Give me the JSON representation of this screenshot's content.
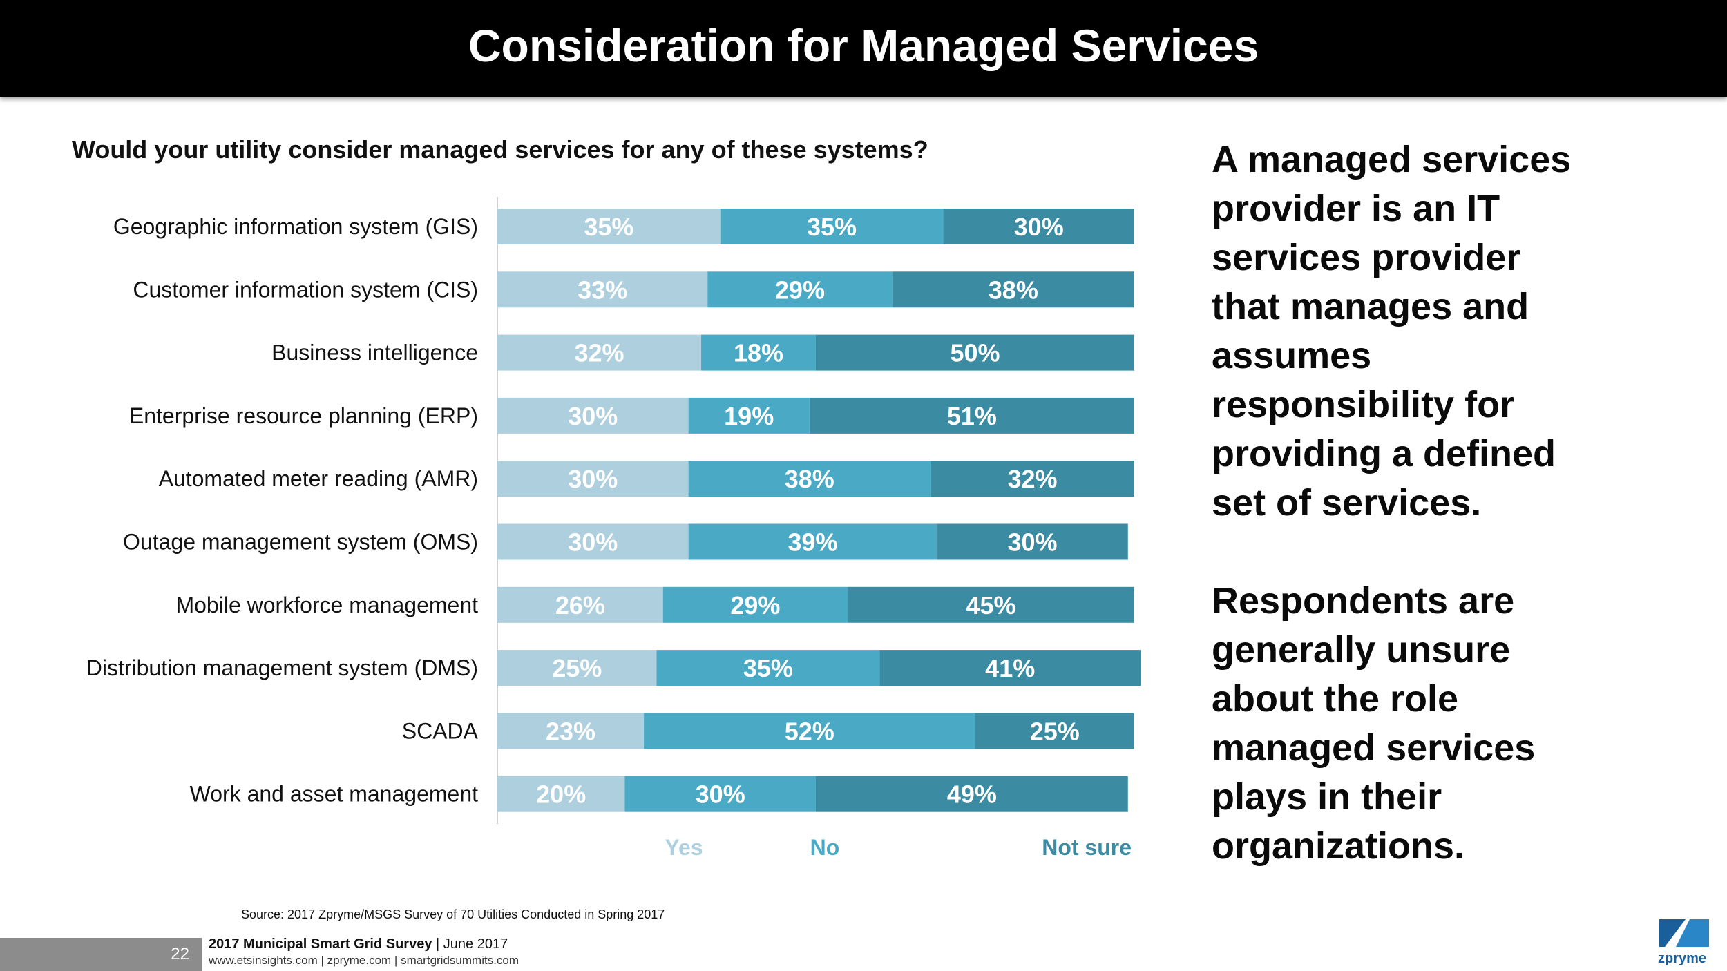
{
  "header": {
    "title": "Consideration for Managed Services"
  },
  "question": "Would your utility consider managed services for any of these systems?",
  "chart_data": {
    "type": "bar",
    "orientation": "horizontal",
    "stacked": true,
    "percent_stacked": true,
    "title": "Would your utility consider managed services for any of these systems?",
    "categories": [
      "Geographic information system (GIS)",
      "Customer information system (CIS)",
      "Business intelligence",
      "Enterprise resource planning (ERP)",
      "Automated meter reading (AMR)",
      "Outage management system (OMS)",
      "Mobile workforce management",
      "Distribution management system (DMS)",
      "SCADA",
      "Work and asset management"
    ],
    "series": [
      {
        "name": "Yes",
        "color": "#aecfdd",
        "values": [
          35,
          33,
          32,
          30,
          30,
          30,
          26,
          25,
          23,
          20
        ]
      },
      {
        "name": "No",
        "color": "#4aaac6",
        "values": [
          35,
          29,
          18,
          19,
          38,
          39,
          29,
          35,
          52,
          30
        ]
      },
      {
        "name": "Not sure",
        "color": "#3b8ba3",
        "values": [
          30,
          38,
          50,
          51,
          32,
          30,
          45,
          41,
          25,
          49
        ]
      }
    ],
    "value_suffix": "%",
    "xlim": [
      0,
      100
    ],
    "legend_position": "bottom"
  },
  "side_text": {
    "paragraph1": "A managed services provider is an IT services provider that manages and assumes responsibility for providing a defined set of services.",
    "paragraph2": "Respondents are generally unsure about the role managed services plays in their organizations."
  },
  "source": "Source: 2017 Zpryme/MSGS Survey of 70 Utilities Conducted in Spring 2017",
  "footer": {
    "page_number": "22",
    "survey_title": "2017 Municipal Smart Grid Survey",
    "separator": " | ",
    "date": "June 2017",
    "links": "www.etsinsights.com | zpryme.com | smartgridsummits.com"
  },
  "logo": {
    "text": "zpryme",
    "color": "#1b5f9a"
  }
}
